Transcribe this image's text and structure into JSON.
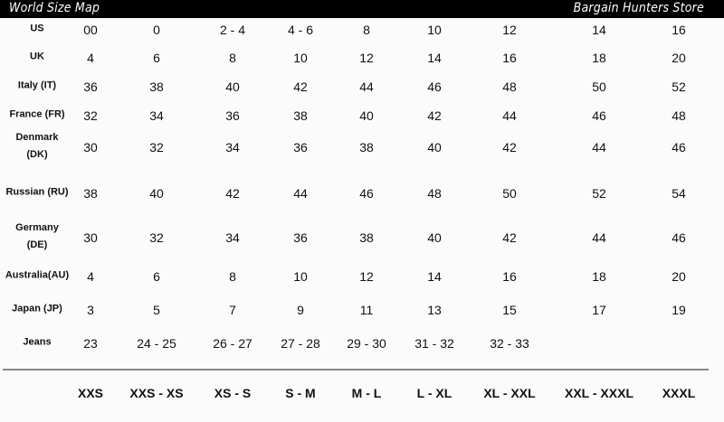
{
  "header": {
    "title": "World Size Map",
    "store": "Bargain Hunters Store"
  },
  "table": {
    "rows": [
      {
        "label": "US",
        "values": [
          "00",
          "0",
          "2 - 4",
          "4 - 6",
          "8",
          "10",
          "12",
          "14",
          "16"
        ]
      },
      {
        "label": "UK",
        "values": [
          "4",
          "6",
          "8",
          "10",
          "12",
          "14",
          "16",
          "18",
          "20"
        ]
      },
      {
        "label": "Italy (IT)",
        "values": [
          "36",
          "38",
          "40",
          "42",
          "44",
          "46",
          "48",
          "50",
          "52"
        ]
      },
      {
        "label": "France (FR)",
        "values": [
          "32",
          "34",
          "36",
          "38",
          "40",
          "42",
          "44",
          "46",
          "48"
        ]
      },
      {
        "label": "Denmark (DK)",
        "values": [
          "30",
          "32",
          "34",
          "36",
          "38",
          "40",
          "42",
          "44",
          "46"
        ]
      },
      {
        "label": "Russian (RU)",
        "values": [
          "38",
          "40",
          "42",
          "44",
          "46",
          "48",
          "50",
          "52",
          "54"
        ]
      },
      {
        "label": "Germany (DE)",
        "values": [
          "30",
          "32",
          "34",
          "36",
          "38",
          "40",
          "42",
          "44",
          "46"
        ]
      },
      {
        "label": "Australia(AU)",
        "values": [
          "4",
          "6",
          "8",
          "10",
          "12",
          "14",
          "16",
          "18",
          "20"
        ]
      },
      {
        "label": "Japan (JP)",
        "values": [
          "3",
          "5",
          "7",
          "9",
          "11",
          "13",
          "15",
          "17",
          "19"
        ]
      },
      {
        "label": "Jeans",
        "values": [
          "23",
          "24 - 25",
          "26 - 27",
          "27 - 28",
          "29 - 30",
          "31 - 32",
          "32 - 33",
          "",
          ""
        ]
      }
    ],
    "sizes": [
      "XXS",
      "XXS - XS",
      "XS - S",
      "S - M",
      "M - L",
      "L - XL",
      "XL - XXL",
      "XXL - XXXL",
      "XXXL"
    ]
  }
}
